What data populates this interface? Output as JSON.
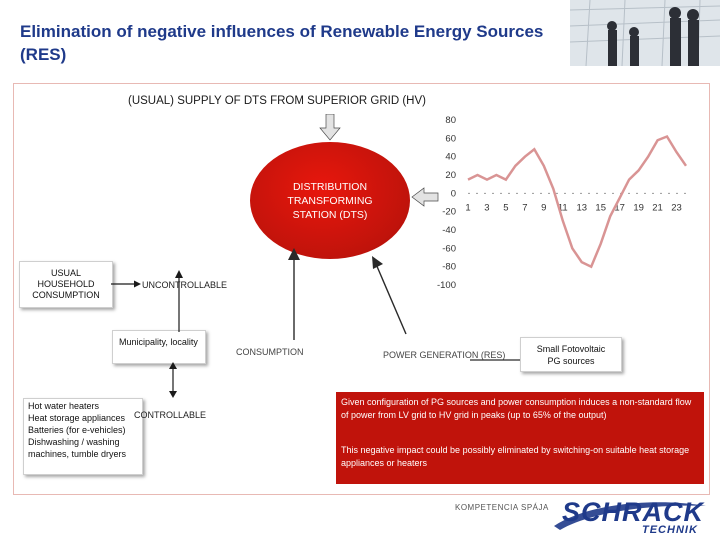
{
  "title": "Elimination of negative influences of Renewable Energy Sources (RES)",
  "supply_label": "(USUAL) SUPPLY OF DTS FROM SUPERIOR GRID (HV)",
  "dts_label": "DISTRIBUTION TRANSFORMING STATION (DTS)",
  "usual_household": "USUAL HOUSEHOLD CONSUMPTION",
  "uncontrollable": "UNCONTROLLABLE",
  "municipality": "Municipality, locality",
  "consumption": "CONSUMPTION",
  "power_generation": "POWER GENERATION (RES)",
  "small_fv": "Small Fotovoltaic PG sources",
  "controllable": "CONTROLLABLE",
  "controllable_items": "Hot water heaters\nHeat storage appliances\nBatteries (for e-vehicles)\nDishwashing / washing machines, tumble dryers",
  "info_para1": "Given configuration of PG sources and power consumption induces a non-standard flow of power from LV grid to HV grid in peaks (up to 65% of the output)",
  "info_para2": "This negative impact could be possibly eliminated by switching-on suitable heat storage appliances or heaters",
  "footer_tagline": "KOMPETENCIA SPÁJA",
  "logo_main": "SCHRACK",
  "logo_sub": "TECHNIK",
  "colors": {
    "title": "#1f3a8a",
    "accent_red": "#c0130b",
    "line": "#999999"
  },
  "chart_data": {
    "type": "line",
    "x": [
      1,
      2,
      3,
      4,
      5,
      6,
      7,
      8,
      9,
      10,
      11,
      12,
      13,
      14,
      15,
      16,
      17,
      18,
      19,
      20,
      21,
      22,
      23,
      24
    ],
    "series": [
      {
        "values": [
          15,
          20,
          15,
          20,
          15,
          30,
          40,
          48,
          30,
          5,
          -30,
          -60,
          -75,
          -80,
          -55,
          -25,
          -5,
          15,
          25,
          40,
          58,
          62,
          45,
          30
        ]
      }
    ],
    "x_tick_labels": [
      "1",
      "3",
      "5",
      "7",
      "9",
      "11",
      "13",
      "15",
      "17",
      "19",
      "21",
      "23"
    ],
    "y_tick_labels": [
      "80",
      "60",
      "40",
      "20",
      "0",
      "-20",
      "-40",
      "-60",
      "-80",
      "-100"
    ],
    "ylim": [
      -100,
      80
    ],
    "xlabel": "",
    "ylabel": "",
    "color": "#d99494"
  }
}
